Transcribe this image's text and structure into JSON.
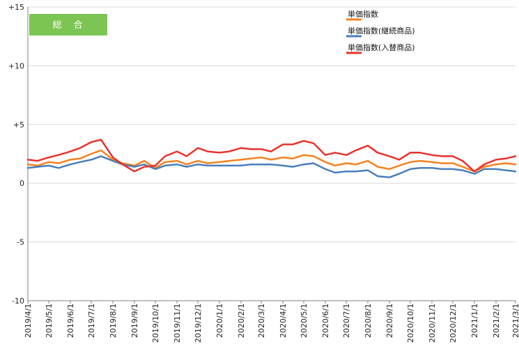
{
  "chart_data": {
    "type": "line",
    "badge": "総　合",
    "title": "",
    "xlabel": "",
    "ylabel": "",
    "ylim": [
      -10,
      15
    ],
    "y_ticks": [
      "+15",
      "+10",
      "+5",
      "0",
      "-5",
      "-10"
    ],
    "y_tick_values": [
      15,
      10,
      5,
      0,
      -5,
      -10
    ],
    "x_tick_labels": [
      "2019/4/1",
      "2019/5/1",
      "2019/6/1",
      "2019/7/1",
      "2019/8/1",
      "2019/9/1",
      "2019/10/1",
      "2019/11/1",
      "2019/12/1",
      "2020/1/1",
      "2020/2/1",
      "2020/3/1",
      "2020/4/1",
      "2020/5/1",
      "2020/6/1",
      "2020/7/1",
      "2020/8/1",
      "2020/9/1",
      "2020/10/1",
      "2020/11/1",
      "2020/12/1",
      "2021/1/1",
      "2021/2/1",
      "2021/3/1"
    ],
    "x_start": "2019/4/1",
    "x_end": "2021/3/1",
    "grid": "horizontal",
    "legend_position": "top-right",
    "series": [
      {
        "name": "単価指数",
        "color": "#f5821f",
        "x": [
          "2019/4/1",
          "2019/4/15",
          "2019/5/1",
          "2019/5/15",
          "2019/6/1",
          "2019/6/15",
          "2019/7/1",
          "2019/7/15",
          "2019/8/1",
          "2019/8/15",
          "2019/9/1",
          "2019/9/15",
          "2019/10/1",
          "2019/10/15",
          "2019/11/1",
          "2019/11/15",
          "2019/12/1",
          "2019/12/15",
          "2020/1/1",
          "2020/1/15",
          "2020/2/1",
          "2020/2/15",
          "2020/3/1",
          "2020/3/15",
          "2020/4/1",
          "2020/4/15",
          "2020/5/1",
          "2020/5/15",
          "2020/6/1",
          "2020/6/15",
          "2020/7/1",
          "2020/7/15",
          "2020/8/1",
          "2020/8/15",
          "2020/9/1",
          "2020/9/15",
          "2020/10/1",
          "2020/10/15",
          "2020/11/1",
          "2020/11/15",
          "2020/12/1",
          "2020/12/15",
          "2021/1/1",
          "2021/1/15",
          "2021/2/1",
          "2021/2/15",
          "2021/3/1"
        ],
        "values": [
          1.6,
          1.5,
          1.8,
          1.7,
          2.0,
          2.1,
          2.5,
          2.8,
          2.0,
          1.7,
          1.5,
          1.9,
          1.3,
          1.8,
          1.9,
          1.6,
          1.9,
          1.7,
          1.8,
          1.9,
          2.0,
          2.1,
          2.2,
          2.0,
          2.2,
          2.1,
          2.4,
          2.3,
          1.8,
          1.5,
          1.7,
          1.6,
          1.9,
          1.4,
          1.2,
          1.5,
          1.8,
          1.9,
          1.8,
          1.7,
          1.7,
          1.4,
          1.0,
          1.4,
          1.6,
          1.7,
          1.6
        ]
      },
      {
        "name": "単価指数(継続商品)",
        "color": "#4a7ebb",
        "x": [
          "2019/4/1",
          "2019/4/15",
          "2019/5/1",
          "2019/5/15",
          "2019/6/1",
          "2019/6/15",
          "2019/7/1",
          "2019/7/15",
          "2019/8/1",
          "2019/8/15",
          "2019/9/1",
          "2019/9/15",
          "2019/10/1",
          "2019/10/15",
          "2019/11/1",
          "2019/11/15",
          "2019/12/1",
          "2019/12/15",
          "2020/1/1",
          "2020/1/15",
          "2020/2/1",
          "2020/2/15",
          "2020/3/1",
          "2020/3/15",
          "2020/4/1",
          "2020/4/15",
          "2020/5/1",
          "2020/5/15",
          "2020/6/1",
          "2020/6/15",
          "2020/7/1",
          "2020/7/15",
          "2020/8/1",
          "2020/8/15",
          "2020/9/1",
          "2020/9/15",
          "2020/10/1",
          "2020/10/15",
          "2020/11/1",
          "2020/11/15",
          "2020/12/1",
          "2020/12/15",
          "2021/1/1",
          "2021/1/15",
          "2021/2/1",
          "2021/2/15",
          "2021/3/1"
        ],
        "values": [
          1.3,
          1.4,
          1.5,
          1.3,
          1.6,
          1.8,
          2.0,
          2.3,
          1.9,
          1.6,
          1.4,
          1.6,
          1.2,
          1.5,
          1.6,
          1.4,
          1.6,
          1.5,
          1.5,
          1.5,
          1.5,
          1.6,
          1.6,
          1.6,
          1.5,
          1.4,
          1.6,
          1.7,
          1.2,
          0.9,
          1.0,
          1.0,
          1.1,
          0.6,
          0.5,
          0.8,
          1.2,
          1.3,
          1.3,
          1.2,
          1.2,
          1.1,
          0.8,
          1.2,
          1.2,
          1.1,
          1.0
        ]
      },
      {
        "name": "単価指数(入替商品)",
        "color": "#e8322d",
        "x": [
          "2019/4/1",
          "2019/4/15",
          "2019/5/1",
          "2019/5/15",
          "2019/6/1",
          "2019/6/15",
          "2019/7/1",
          "2019/7/15",
          "2019/8/1",
          "2019/8/15",
          "2019/9/1",
          "2019/9/15",
          "2019/10/1",
          "2019/10/15",
          "2019/11/1",
          "2019/11/15",
          "2019/12/1",
          "2019/12/15",
          "2020/1/1",
          "2020/1/15",
          "2020/2/1",
          "2020/2/15",
          "2020/3/1",
          "2020/3/15",
          "2020/4/1",
          "2020/4/15",
          "2020/5/1",
          "2020/5/15",
          "2020/6/1",
          "2020/6/15",
          "2020/7/1",
          "2020/7/15",
          "2020/8/1",
          "2020/8/15",
          "2020/9/1",
          "2020/9/15",
          "2020/10/1",
          "2020/10/15",
          "2020/11/1",
          "2020/11/15",
          "2020/12/1",
          "2020/12/15",
          "2021/1/1",
          "2021/1/15",
          "2021/2/1",
          "2021/2/15",
          "2021/3/1"
        ],
        "values": [
          2.0,
          1.9,
          2.2,
          2.4,
          2.7,
          3.0,
          3.5,
          3.7,
          2.2,
          1.6,
          1.0,
          1.4,
          1.5,
          2.3,
          2.7,
          2.3,
          3.0,
          2.7,
          2.6,
          2.7,
          3.0,
          2.9,
          2.9,
          2.7,
          3.3,
          3.3,
          3.6,
          3.4,
          2.4,
          2.6,
          2.4,
          2.8,
          3.2,
          2.6,
          2.3,
          2.0,
          2.6,
          2.6,
          2.4,
          2.3,
          2.3,
          1.9,
          1.0,
          1.6,
          2.0,
          2.1,
          2.3
        ]
      }
    ]
  }
}
